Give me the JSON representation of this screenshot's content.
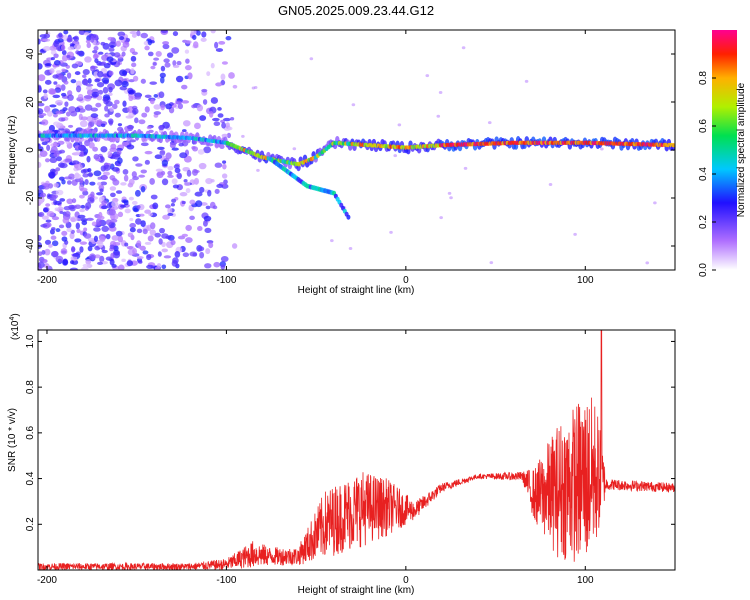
{
  "title": "GN05.2025.009.23.44.G12",
  "chart_data": [
    {
      "type": "heatmap",
      "name": "spectrogram",
      "xlabel": "Height of straight line (km)",
      "ylabel": "Frequency (Hz)",
      "xlim": [
        -205,
        150
      ],
      "ylim": [
        -50,
        50
      ],
      "xticks": [
        -200,
        -100,
        0,
        100
      ],
      "yticks": [
        -40,
        -20,
        0,
        20,
        40
      ],
      "colorbar": {
        "label": "Normalized spectral amplitude",
        "range": [
          0,
          1
        ],
        "ticks": [
          0.0,
          0.2,
          0.4,
          0.6,
          0.8
        ]
      },
      "ridge": [
        {
          "x": -150,
          "f": 6
        },
        {
          "x": -120,
          "f": 5
        },
        {
          "x": -100,
          "f": 3
        },
        {
          "x": -80,
          "f": -3
        },
        {
          "x": -60,
          "f": -6
        },
        {
          "x": -50,
          "f": -3
        },
        {
          "x": -40,
          "f": 3
        },
        {
          "x": -20,
          "f": 2
        },
        {
          "x": 0,
          "f": 1
        },
        {
          "x": 20,
          "f": 2
        },
        {
          "x": 60,
          "f": 3
        },
        {
          "x": 100,
          "f": 3
        },
        {
          "x": 150,
          "f": 2
        }
      ],
      "secondary_ridge": [
        {
          "x": -75,
          "f": -4
        },
        {
          "x": -55,
          "f": -15
        },
        {
          "x": -40,
          "f": -18
        },
        {
          "x": -32,
          "f": -28
        }
      ]
    },
    {
      "type": "line",
      "name": "snr",
      "xlabel": "Height of straight line (km)",
      "ylabel": "SNR (10 * v/v)",
      "scale_label": "(x10",
      "scale_exponent": "4",
      "scale_close": ")",
      "color": "#e82020",
      "xlim": [
        -205,
        150
      ],
      "ylim": [
        0,
        1.05
      ],
      "xticks": [
        -200,
        -100,
        0,
        100
      ],
      "yticks": [
        0.2,
        0.4,
        0.6,
        0.8,
        1.0
      ],
      "envelope": [
        {
          "x": -205,
          "lo": 0.0,
          "hi": 0.03
        },
        {
          "x": -120,
          "lo": 0.0,
          "hi": 0.03
        },
        {
          "x": -100,
          "lo": 0.0,
          "hi": 0.05
        },
        {
          "x": -85,
          "lo": 0.01,
          "hi": 0.13
        },
        {
          "x": -75,
          "lo": 0.02,
          "hi": 0.1
        },
        {
          "x": -60,
          "lo": 0.02,
          "hi": 0.1
        },
        {
          "x": -45,
          "lo": 0.05,
          "hi": 0.35
        },
        {
          "x": -25,
          "lo": 0.1,
          "hi": 0.44
        },
        {
          "x": -10,
          "lo": 0.15,
          "hi": 0.4
        },
        {
          "x": 5,
          "lo": 0.22,
          "hi": 0.3
        },
        {
          "x": 20,
          "lo": 0.34,
          "hi": 0.38
        },
        {
          "x": 40,
          "lo": 0.4,
          "hi": 0.42
        },
        {
          "x": 65,
          "lo": 0.39,
          "hi": 0.43
        },
        {
          "x": 72,
          "lo": 0.2,
          "hi": 0.45
        },
        {
          "x": 85,
          "lo": 0.05,
          "hi": 0.65
        },
        {
          "x": 100,
          "lo": 0.02,
          "hi": 0.78
        },
        {
          "x": 106,
          "lo": 0.1,
          "hi": 0.75
        },
        {
          "x": 112,
          "lo": 0.35,
          "hi": 0.4
        },
        {
          "x": 150,
          "lo": 0.34,
          "hi": 0.38
        }
      ],
      "spike": {
        "x": 109,
        "y": 1.05
      }
    }
  ]
}
